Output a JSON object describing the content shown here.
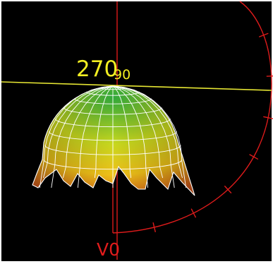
{
  "diagram": {
    "labels": {
      "h_angle": "270",
      "v_angle_top": "90",
      "v_angle_bottom": "V0"
    },
    "colors": {
      "background": "#000000",
      "border": "#ffffff",
      "vertical_plane": "#dd1b1b",
      "horizontal_plane": "#e6e633",
      "label_yellow": "#f2ee22",
      "label_red": "#e01c1c",
      "wireframe": "#ffffff",
      "surface_top": "#2fa83a",
      "surface_mid": "#c8d81e",
      "surface_low": "#f0c018",
      "surface_edge": "#d2561a"
    }
  }
}
